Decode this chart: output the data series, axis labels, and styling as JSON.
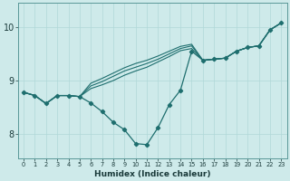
{
  "xlabel": "Humidex (Indice chaleur)",
  "bg_color": "#ceeaea",
  "line_color": "#1e6e6e",
  "grid_color": "#b0d8d8",
  "xlim": [
    -0.5,
    23.5
  ],
  "ylim": [
    7.55,
    10.45
  ],
  "yticks": [
    8,
    9,
    10
  ],
  "xticks": [
    0,
    1,
    2,
    3,
    4,
    5,
    6,
    7,
    8,
    9,
    10,
    11,
    12,
    13,
    14,
    15,
    16,
    17,
    18,
    19,
    20,
    21,
    22,
    23
  ],
  "figsize": [
    3.2,
    2.0
  ],
  "dpi": 100,
  "series_main": [
    8.78,
    8.72,
    8.57,
    8.72,
    8.72,
    8.7,
    8.58,
    8.42,
    8.22,
    8.08,
    7.82,
    7.8,
    8.12,
    8.55,
    8.82,
    9.55,
    9.38,
    9.4,
    9.42,
    9.55,
    9.62,
    9.65,
    9.95,
    10.08
  ],
  "series_line2": [
    8.78,
    8.72,
    8.57,
    8.72,
    8.72,
    8.7,
    8.85,
    8.92,
    9.0,
    9.1,
    9.18,
    9.25,
    9.35,
    9.45,
    9.56,
    9.6,
    9.38,
    9.4,
    9.42,
    9.55,
    9.62,
    9.65,
    9.95,
    10.08
  ],
  "series_line3": [
    8.78,
    8.72,
    8.57,
    8.72,
    8.72,
    8.7,
    8.9,
    8.98,
    9.08,
    9.18,
    9.25,
    9.32,
    9.4,
    9.5,
    9.6,
    9.65,
    9.38,
    9.4,
    9.42,
    9.55,
    9.62,
    9.65,
    9.95,
    10.08
  ],
  "series_line4": [
    8.78,
    8.72,
    8.57,
    8.72,
    8.72,
    8.7,
    8.95,
    9.04,
    9.14,
    9.24,
    9.32,
    9.38,
    9.46,
    9.55,
    9.64,
    9.68,
    9.38,
    9.4,
    9.42,
    9.55,
    9.62,
    9.65,
    9.95,
    10.08
  ]
}
